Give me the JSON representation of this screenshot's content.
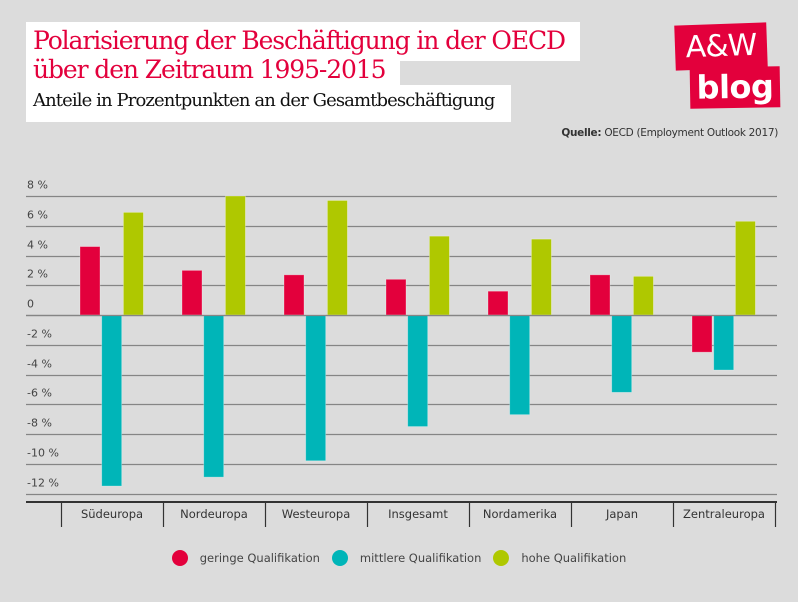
{
  "header": {
    "title_line1": "Polarisierung der Beschäftigung in der OECD",
    "title_line2": "über den Zeitraum 1995-2015",
    "subtitle": "Anteile in Prozentpunkten an der Gesamtbeschäftigung",
    "source_label": "Quelle:",
    "source_text": "OECD (Employment Outlook 2017)"
  },
  "logo": {
    "line1": "A&W",
    "line2": "blog",
    "color": "#e3003c"
  },
  "legend": [
    {
      "label": "geringe Qualifikation",
      "color": "#e3003c"
    },
    {
      "label": "mittlere Qualifikation",
      "color": "#00b5b8"
    },
    {
      "label": "hohe Qualifikation",
      "color": "#afc800"
    }
  ],
  "chart_data": {
    "type": "bar",
    "title": "Polarisierung der Beschäftigung in der OECD über den Zeitraum 1995-2015",
    "subtitle": "Anteile in Prozentpunkten an der Gesamtbeschäftigung",
    "xlabel": "",
    "ylabel": "",
    "categories": [
      "Südeuropa",
      "Nordeuropa",
      "Westeuropa",
      "Insgesamt",
      "Nordamerika",
      "Japan",
      "Zentraleuropa"
    ],
    "series": [
      {
        "name": "geringe Qualifikation",
        "color": "#e3003c",
        "values": [
          4.6,
          3.0,
          2.7,
          2.4,
          1.6,
          2.7,
          -2.5
        ]
      },
      {
        "name": "mittlere Qualifikation",
        "color": "#00b5b8",
        "values": [
          -11.5,
          -10.9,
          -9.8,
          -7.5,
          -6.7,
          -5.2,
          -3.7
        ]
      },
      {
        "name": "hohe Qualifikation",
        "color": "#afc800",
        "values": [
          6.9,
          8.0,
          7.7,
          5.3,
          5.1,
          2.6,
          6.3
        ]
      }
    ],
    "yticks": [
      8,
      6,
      4,
      2,
      0,
      -2,
      -4,
      -6,
      -8,
      -10,
      -12
    ],
    "ytick_labels": [
      "8 %",
      "6 %",
      "4 %",
      "2 %",
      "0",
      "-2 %",
      "-4 %",
      "-6 %",
      "-8 %",
      "-10 %",
      "-12 %"
    ],
    "ylim": [
      -13,
      8
    ],
    "grid": true,
    "legend_position": "bottom"
  }
}
